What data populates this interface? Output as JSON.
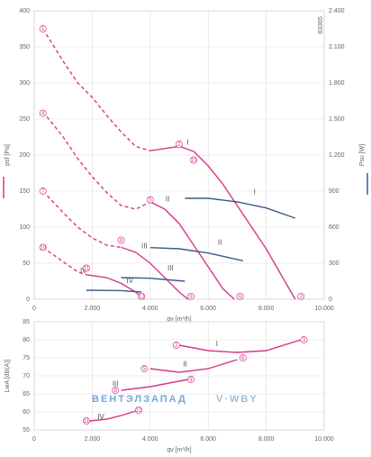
{
  "chart_data": [
    {
      "type": "line",
      "y_label": "psf [Pa]",
      "y2_label": "Psu [W]",
      "x_label": "qv [m³/h]",
      "code": "83365",
      "xlim": [
        0,
        10000
      ],
      "xticks": [
        0,
        {
          "value": 2000,
          "label": "2.000"
        },
        {
          "value": 4000,
          "label": "4.000"
        },
        {
          "value": 6000,
          "label": "6.000"
        },
        {
          "value": 8000,
          "label": "8.000"
        },
        {
          "value": 10000,
          "label": "10.000"
        }
      ],
      "ylim": [
        0,
        400
      ],
      "yticks": [
        0,
        50,
        100,
        150,
        200,
        250,
        300,
        350,
        400
      ],
      "y2lim": [
        0,
        2400
      ],
      "y2ticks": [
        0,
        300,
        600,
        900,
        {
          "value": 1200,
          "label": "1.200"
        },
        {
          "value": 1500,
          "label": "1.500"
        },
        {
          "value": 1800,
          "label": "1.800"
        },
        {
          "value": 2100,
          "label": "2.100"
        },
        {
          "value": 2400,
          "label": "2.400"
        }
      ],
      "grid": true,
      "series": [
        {
          "color": "#d9378a",
          "dashed": true,
          "x": [
            300,
            1000,
            1500,
            2000,
            2500,
            3000,
            3500,
            4000
          ],
          "values": [
            375,
            330,
            300,
            280,
            255,
            232,
            212,
            206
          ]
        },
        {
          "color": "#d9378a",
          "dashed": false,
          "x": [
            4000,
            4500,
            5000,
            5500,
            6000,
            6500,
            7000,
            7500,
            8000,
            8500,
            9000
          ],
          "values": [
            206,
            209,
            212,
            205,
            185,
            160,
            130,
            100,
            70,
            35,
            0
          ]
        },
        {
          "color": "#d9378a",
          "dashed": true,
          "x": [
            300,
            1000,
            1500,
            2000,
            2500,
            3000,
            3500,
            4000
          ],
          "values": [
            260,
            225,
            195,
            170,
            148,
            130,
            125,
            135
          ]
        },
        {
          "color": "#d9378a",
          "dashed": false,
          "x": [
            4000,
            4500,
            5000,
            5500,
            6000,
            6500,
            6900
          ],
          "values": [
            135,
            125,
            105,
            75,
            45,
            15,
            0
          ]
        },
        {
          "color": "#d9378a",
          "dashed": true,
          "x": [
            300,
            1000,
            1500,
            2000,
            2500,
            3000
          ],
          "values": [
            150,
            120,
            100,
            85,
            75,
            72
          ]
        },
        {
          "color": "#d9378a",
          "dashed": false,
          "x": [
            3000,
            3500,
            4000,
            4500,
            5000,
            5300
          ],
          "values": [
            72,
            65,
            50,
            30,
            10,
            0
          ]
        },
        {
          "color": "#d9378a",
          "dashed": true,
          "x": [
            300,
            1000,
            1500,
            1800
          ],
          "values": [
            72,
            52,
            38,
            34
          ]
        },
        {
          "color": "#d9378a",
          "dashed": false,
          "x": [
            1800,
            2500,
            3000,
            3500,
            3800
          ],
          "values": [
            34,
            30,
            22,
            10,
            0
          ]
        },
        {
          "color": "#3a5a8c",
          "dashed": false,
          "axis": "y2",
          "x": [
            5200,
            6000,
            7000,
            8000,
            9000
          ],
          "values": [
            840,
            840,
            810,
            760,
            675
          ]
        },
        {
          "color": "#3a5a8c",
          "dashed": false,
          "axis": "y2",
          "x": [
            4000,
            5000,
            6000,
            7200
          ],
          "values": [
            430,
            420,
            385,
            320
          ]
        },
        {
          "color": "#3a5a8c",
          "dashed": false,
          "axis": "y2",
          "x": [
            3000,
            4000,
            5200
          ],
          "values": [
            180,
            175,
            150
          ]
        },
        {
          "color": "#3a5a8c",
          "dashed": false,
          "axis": "y2",
          "x": [
            1800,
            3000,
            3700
          ],
          "values": [
            75,
            72,
            60
          ]
        }
      ],
      "labels": [
        {
          "text": "I",
          "x": 5300,
          "y": 212
        },
        {
          "text": "II",
          "x": 4600,
          "y": 133
        },
        {
          "text": "III",
          "x": 3800,
          "y": 68
        },
        {
          "text": "IV",
          "x": 1700,
          "y": 34
        },
        {
          "text": "I",
          "x": 7600,
          "y": 860,
          "axis": "y2"
        },
        {
          "text": "II",
          "x": 6400,
          "y": 440,
          "axis": "y2"
        },
        {
          "text": "III",
          "x": 4700,
          "y": 225,
          "axis": "y2"
        },
        {
          "text": "IV",
          "x": 3300,
          "y": 120,
          "axis": "y2"
        }
      ],
      "markers": [
        {
          "text": "1",
          "x": 300,
          "y": 375
        },
        {
          "text": "2",
          "x": 5000,
          "y": 215
        },
        {
          "text": "3",
          "x": 9200,
          "y": 4
        },
        {
          "text": "4",
          "x": 300,
          "y": 258
        },
        {
          "text": "5",
          "x": 4000,
          "y": 138
        },
        {
          "text": "6",
          "x": 7100,
          "y": 4
        },
        {
          "text": "7",
          "x": 300,
          "y": 150
        },
        {
          "text": "8",
          "x": 3000,
          "y": 82
        },
        {
          "text": "9",
          "x": 5400,
          "y": 4
        },
        {
          "text": "10",
          "x": 300,
          "y": 72
        },
        {
          "text": "11",
          "x": 1800,
          "y": 43
        },
        {
          "text": "12",
          "x": 3700,
          "y": 4
        },
        {
          "text": "10",
          "x": 5500,
          "y": 193
        }
      ]
    },
    {
      "type": "line",
      "y_label": "LwA [dB(A)]",
      "x_label": "qv [m³/h]",
      "watermark": "ВЕНТЭЛЗАПАД",
      "watermark2": "V·WBY",
      "xlim": [
        0,
        10000
      ],
      "xticks": [
        0,
        {
          "value": 2000,
          "label": "2.000"
        },
        {
          "value": 4000,
          "label": "4.000"
        },
        {
          "value": 6000,
          "label": "6.000"
        },
        {
          "value": 8000,
          "label": "8.000"
        },
        {
          "value": 10000,
          "label": "10.000"
        }
      ],
      "ylim": [
        55,
        85
      ],
      "yticks": [
        55,
        60,
        65,
        70,
        75,
        80,
        85
      ],
      "grid": true,
      "series": [
        {
          "color": "#d9378a",
          "dashed": false,
          "x": [
            5000,
            6000,
            7000,
            8000,
            9200
          ],
          "values": [
            78.5,
            77,
            76.5,
            77,
            80
          ]
        },
        {
          "color": "#d9378a",
          "dashed": false,
          "x": [
            4000,
            5000,
            6000,
            7000
          ],
          "values": [
            72,
            71,
            72,
            74.5
          ]
        },
        {
          "color": "#d9378a",
          "dashed": false,
          "x": [
            3000,
            4000,
            5300
          ],
          "values": [
            66,
            67,
            69
          ]
        },
        {
          "color": "#d9378a",
          "dashed": false,
          "x": [
            1900,
            2500,
            3000,
            3600
          ],
          "values": [
            57.5,
            58,
            59,
            60.5
          ]
        }
      ],
      "labels": [
        {
          "text": "I",
          "x": 6300,
          "y": 77.8
        },
        {
          "text": "II",
          "x": 5200,
          "y": 72.2
        },
        {
          "text": "III",
          "x": 2800,
          "y": 66.7
        },
        {
          "text": "IV",
          "x": 2300,
          "y": 57.5
        }
      ],
      "markers": [
        {
          "text": "2",
          "x": 4900,
          "y": 78.5
        },
        {
          "text": "3",
          "x": 9300,
          "y": 80
        },
        {
          "text": "5",
          "x": 3800,
          "y": 72
        },
        {
          "text": "6",
          "x": 7200,
          "y": 75
        },
        {
          "text": "8",
          "x": 2800,
          "y": 66
        },
        {
          "text": "9",
          "x": 5400,
          "y": 69
        },
        {
          "text": "11",
          "x": 1800,
          "y": 57.5
        },
        {
          "text": "12",
          "x": 3600,
          "y": 60.5
        }
      ]
    }
  ]
}
